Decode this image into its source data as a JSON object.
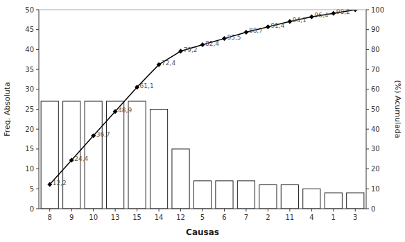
{
  "chart_data": {
    "type": "bar",
    "xlabel": "Causas",
    "ylabel": "Freq. Absoluta",
    "y2label": "(%) Acumulada",
    "categories": [
      "8",
      "9",
      "10",
      "13",
      "15",
      "14",
      "12",
      "5",
      "6",
      "7",
      "2",
      "11",
      "4",
      "1",
      "3"
    ],
    "series": [
      {
        "type": "bar",
        "color": "#ffffff",
        "values": [
          27,
          27,
          27,
          27,
          27,
          25,
          15,
          7,
          7,
          7,
          6,
          6,
          5,
          4,
          4
        ]
      },
      {
        "type": "line",
        "axis": "y2",
        "color": "#000000",
        "marker": "diamond",
        "data_labels": true,
        "values": [
          12.2,
          24.4,
          36.7,
          48.9,
          61.1,
          72.4,
          79.2,
          82.4,
          85.5,
          88.7,
          91.4,
          94.1,
          96.4,
          98.2,
          100.0
        ],
        "value_labels": [
          "12,2",
          "24,4",
          "36,7",
          "48,9",
          "61,1",
          "72,4",
          "79,2",
          "82,4",
          "85,5",
          "88,7",
          "91,4",
          "94,1",
          "96,4",
          "98,2",
          null
        ]
      }
    ],
    "ylim": [
      0,
      50
    ],
    "yticks": [
      0,
      5,
      10,
      15,
      20,
      25,
      30,
      35,
      40,
      45,
      50
    ],
    "y2lim": [
      0,
      100
    ],
    "y2ticks": [
      0,
      10,
      20,
      30,
      40,
      50,
      60,
      70,
      80,
      90,
      100
    ],
    "grid": false
  }
}
